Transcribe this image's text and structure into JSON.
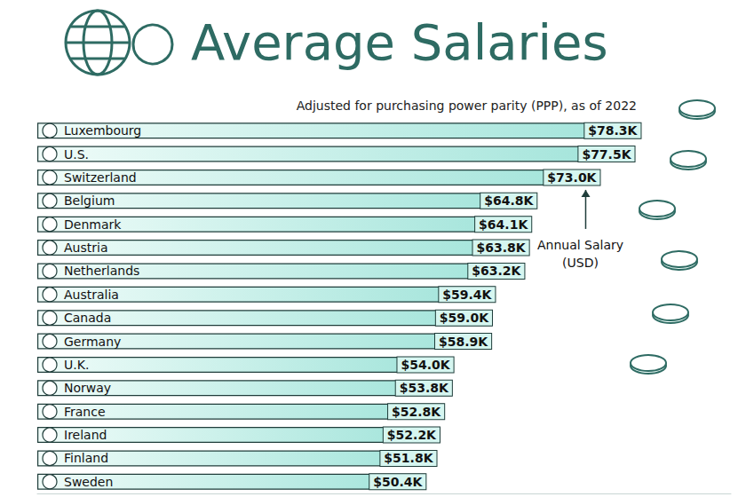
{
  "chart_data": {
    "type": "bar",
    "orientation": "horizontal",
    "title": "Average Salaries",
    "subtitle": "Adjusted for purchasing power parity (PPP), as of 2022",
    "annotation": "Annual Salary (USD)",
    "categories": [
      "Luxembourg",
      "U.S.",
      "Switzerland",
      "Belgium",
      "Denmark",
      "Austria",
      "Netherlands",
      "Australia",
      "Canada",
      "Germany",
      "U.K.",
      "Norway",
      "France",
      "Ireland",
      "Finland",
      "Sweden"
    ],
    "values": [
      78.3,
      77.5,
      73.0,
      64.8,
      64.1,
      63.8,
      63.2,
      59.4,
      59.0,
      58.9,
      54.0,
      53.8,
      52.8,
      52.2,
      51.8,
      50.4
    ],
    "value_labels": [
      "$78.3K",
      "$77.5K",
      "$73.0K",
      "$64.8K",
      "$64.1K",
      "$63.8K",
      "$63.2K",
      "$59.4K",
      "$59.0K",
      "$58.9K",
      "$54.0K",
      "$53.8K",
      "$52.8K",
      "$52.2K",
      "$51.8K",
      "$50.4K"
    ],
    "color": "#9fe3d9",
    "xlim": [
      0,
      90
    ],
    "grid": false,
    "data_labels": true,
    "tick_labels": "y"
  }
}
